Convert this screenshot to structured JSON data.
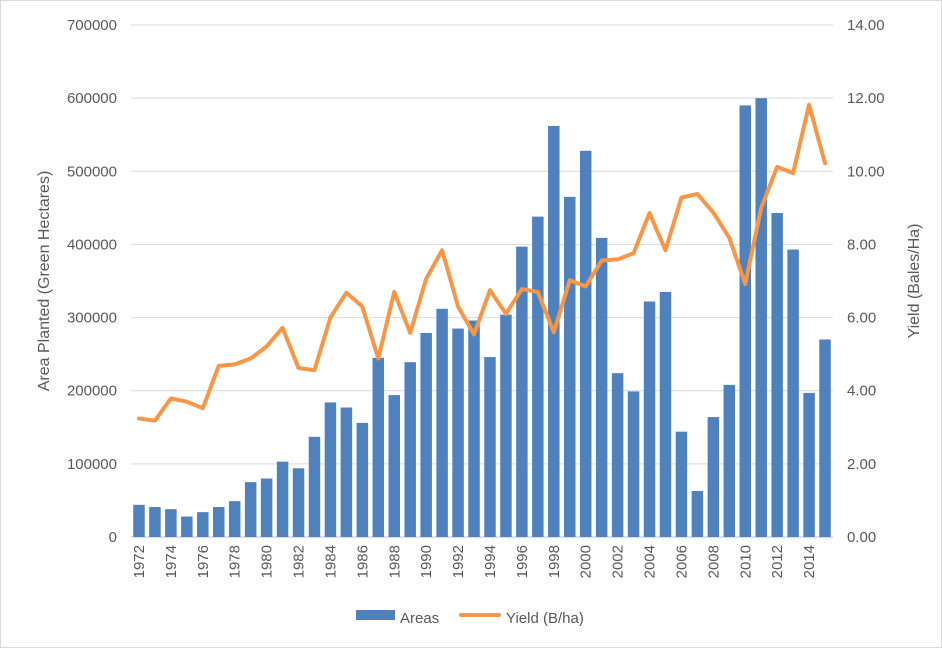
{
  "chart_data": {
    "type": "bar",
    "title": "",
    "categories": [
      "1972",
      "1973",
      "1974",
      "1975",
      "1976",
      "1977",
      "1978",
      "1979",
      "1980",
      "1981",
      "1982",
      "1983",
      "1984",
      "1985",
      "1986",
      "1987",
      "1988",
      "1989",
      "1990",
      "1991",
      "1992",
      "1993",
      "1994",
      "1995",
      "1996",
      "1997",
      "1998",
      "1999",
      "2000",
      "2001",
      "2002",
      "2003",
      "2004",
      "2005",
      "2006",
      "2007",
      "2008",
      "2009",
      "2010",
      "2011",
      "2012",
      "2013",
      "2014",
      "2015"
    ],
    "x_tick_labels": [
      "1972",
      "1974",
      "1976",
      "1978",
      "1980",
      "1982",
      "1984",
      "1986",
      "1988",
      "1990",
      "1992",
      "1994",
      "1996",
      "1998",
      "2000",
      "2002",
      "2004",
      "2006",
      "2008",
      "2010",
      "2012",
      "2014"
    ],
    "series": [
      {
        "name": "Areas",
        "type": "bar",
        "axis": "left",
        "color": "#4f81bd",
        "values": [
          44000,
          41000,
          38000,
          28000,
          34000,
          41000,
          49000,
          75000,
          80000,
          103000,
          94000,
          137000,
          184000,
          177000,
          156000,
          245000,
          194000,
          239000,
          279000,
          312000,
          285000,
          296000,
          246000,
          304000,
          397000,
          438000,
          562000,
          465000,
          528000,
          409000,
          224000,
          199000,
          322000,
          335000,
          144000,
          63000,
          164000,
          208000,
          590000,
          600000,
          443000,
          393000,
          197000,
          270000
        ]
      },
      {
        "name": "Yield (B/ha)",
        "type": "line",
        "axis": "right",
        "color": "#f79646",
        "values": [
          3.24,
          3.18,
          3.79,
          3.7,
          3.52,
          4.68,
          4.72,
          4.88,
          5.21,
          5.72,
          4.62,
          4.56,
          6.0,
          6.68,
          6.3,
          4.88,
          6.7,
          5.58,
          7.06,
          7.84,
          6.3,
          5.54,
          6.75,
          6.1,
          6.78,
          6.7,
          5.6,
          7.02,
          6.85,
          7.56,
          7.59,
          7.76,
          8.86,
          7.84,
          9.28,
          9.38,
          8.87,
          8.18,
          6.92,
          9.0,
          10.12,
          9.95,
          11.82,
          10.22
        ]
      }
    ],
    "y_left": {
      "label": "Area Planted (Green Hectares)",
      "range": [
        0,
        700000
      ],
      "ticks": [
        "0",
        "100000",
        "200000",
        "300000",
        "400000",
        "500000",
        "600000",
        "700000"
      ]
    },
    "y_right": {
      "label": "Yield (Bales/Ha)",
      "range": [
        0,
        14
      ],
      "ticks": [
        "0.00",
        "2.00",
        "4.00",
        "6.00",
        "8.00",
        "10.00",
        "12.00",
        "14.00"
      ]
    },
    "grid": true,
    "legend_position": "bottom",
    "legend": [
      "Areas",
      "Yield (B/ha)"
    ]
  }
}
